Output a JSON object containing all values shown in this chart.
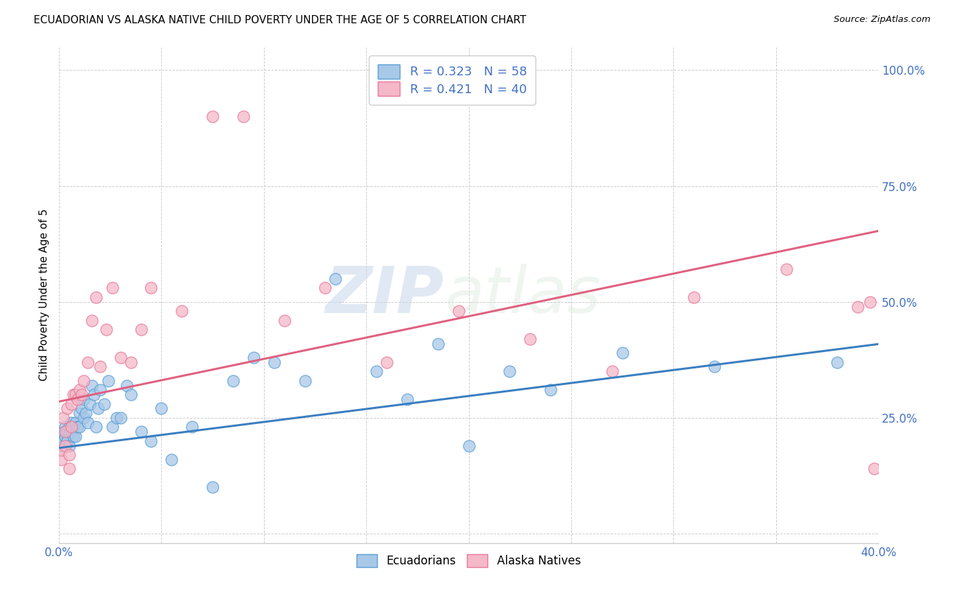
{
  "title": "ECUADORIAN VS ALASKA NATIVE CHILD POVERTY UNDER THE AGE OF 5 CORRELATION CHART",
  "source": "Source: ZipAtlas.com",
  "ylabel": "Child Poverty Under the Age of 5",
  "xlim": [
    0.0,
    0.4
  ],
  "ylim": [
    -0.02,
    1.05
  ],
  "blue_color": "#a8c8e8",
  "pink_color": "#f4b8c8",
  "blue_edge_color": "#5a9fd4",
  "pink_edge_color": "#e87898",
  "blue_line_color": "#3a7fc1",
  "pink_line_color": "#e06080",
  "legend_text_color": "#4472c4",
  "tick_color": "#4472c4",
  "watermark_zip": "ZIP",
  "watermark_atlas": "atlas",
  "series_labels": [
    "Ecuadorians",
    "Alaska Natives"
  ],
  "ecuadorians_x": [
    0.001,
    0.001,
    0.002,
    0.002,
    0.003,
    0.003,
    0.004,
    0.004,
    0.005,
    0.005,
    0.005,
    0.006,
    0.006,
    0.007,
    0.007,
    0.008,
    0.008,
    0.009,
    0.01,
    0.01,
    0.011,
    0.012,
    0.012,
    0.013,
    0.014,
    0.015,
    0.016,
    0.017,
    0.018,
    0.019,
    0.02,
    0.022,
    0.024,
    0.026,
    0.028,
    0.03,
    0.033,
    0.035,
    0.04,
    0.045,
    0.05,
    0.055,
    0.065,
    0.075,
    0.085,
    0.095,
    0.105,
    0.12,
    0.135,
    0.155,
    0.17,
    0.185,
    0.2,
    0.22,
    0.24,
    0.275,
    0.32,
    0.38
  ],
  "ecuadorians_y": [
    0.19,
    0.21,
    0.2,
    0.22,
    0.21,
    0.23,
    0.2,
    0.22,
    0.22,
    0.23,
    0.19,
    0.22,
    0.24,
    0.23,
    0.21,
    0.24,
    0.21,
    0.23,
    0.26,
    0.23,
    0.27,
    0.29,
    0.25,
    0.26,
    0.24,
    0.28,
    0.32,
    0.3,
    0.23,
    0.27,
    0.31,
    0.28,
    0.33,
    0.23,
    0.25,
    0.25,
    0.32,
    0.3,
    0.22,
    0.2,
    0.27,
    0.16,
    0.23,
    0.1,
    0.33,
    0.38,
    0.37,
    0.33,
    0.55,
    0.35,
    0.29,
    0.41,
    0.19,
    0.35,
    0.31,
    0.39,
    0.36,
    0.37
  ],
  "alaska_x": [
    0.001,
    0.001,
    0.002,
    0.003,
    0.003,
    0.004,
    0.005,
    0.005,
    0.006,
    0.006,
    0.007,
    0.008,
    0.009,
    0.01,
    0.011,
    0.012,
    0.014,
    0.016,
    0.018,
    0.02,
    0.023,
    0.026,
    0.03,
    0.035,
    0.04,
    0.045,
    0.06,
    0.075,
    0.09,
    0.11,
    0.13,
    0.16,
    0.195,
    0.23,
    0.27,
    0.31,
    0.355,
    0.39,
    0.396,
    0.398
  ],
  "alaska_y": [
    0.16,
    0.18,
    0.25,
    0.19,
    0.22,
    0.27,
    0.14,
    0.17,
    0.23,
    0.28,
    0.3,
    0.3,
    0.29,
    0.31,
    0.3,
    0.33,
    0.37,
    0.46,
    0.51,
    0.36,
    0.44,
    0.53,
    0.38,
    0.37,
    0.44,
    0.53,
    0.48,
    0.9,
    0.9,
    0.46,
    0.53,
    0.37,
    0.48,
    0.42,
    0.35,
    0.51,
    0.57,
    0.49,
    0.5,
    0.14
  ],
  "blue_intercept": 0.185,
  "blue_slope": 0.56,
  "pink_intercept": 0.285,
  "pink_slope": 0.92
}
